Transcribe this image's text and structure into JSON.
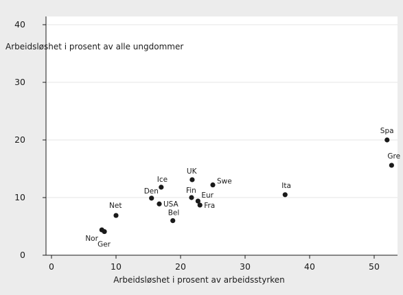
{
  "chart_data": {
    "type": "scatter",
    "title": "",
    "xlabel": "Arbeidsløshet i  prosent av arbeidsstyrken",
    "ylabel": "Arbeidsløshet i prosent av alle ungdommer",
    "xlim": [
      -1,
      53
    ],
    "ylim": [
      0,
      41
    ],
    "xticks": [
      0,
      10,
      20,
      30,
      40,
      50
    ],
    "yticks": [
      0,
      10,
      20,
      30,
      40
    ],
    "grid": "horizontal",
    "point_color": "#1a1a1a",
    "points": [
      {
        "label": "Nor",
        "x": 7.8,
        "y": 4.4
      },
      {
        "label": "Ger",
        "x": 8.2,
        "y": 4.1
      },
      {
        "label": "Net",
        "x": 10.0,
        "y": 6.9
      },
      {
        "label": "Den",
        "x": 15.5,
        "y": 9.9
      },
      {
        "label": "Ice",
        "x": 17.0,
        "y": 11.8
      },
      {
        "label": "USA",
        "x": 16.7,
        "y": 8.9
      },
      {
        "label": "Bel",
        "x": 18.8,
        "y": 6.0
      },
      {
        "label": "UK",
        "x": 21.8,
        "y": 13.1
      },
      {
        "label": "Fin",
        "x": 21.7,
        "y": 10.0
      },
      {
        "label": "Eur",
        "x": 22.7,
        "y": 9.4
      },
      {
        "label": "Fra",
        "x": 23.0,
        "y": 8.7
      },
      {
        "label": "Swe",
        "x": 25.0,
        "y": 12.2
      },
      {
        "label": "Ita",
        "x": 36.2,
        "y": 10.5
      },
      {
        "label": "Spa",
        "x": 52.0,
        "y": 20.0
      },
      {
        "label": "Gre",
        "x": 52.7,
        "y": 15.6
      }
    ]
  }
}
